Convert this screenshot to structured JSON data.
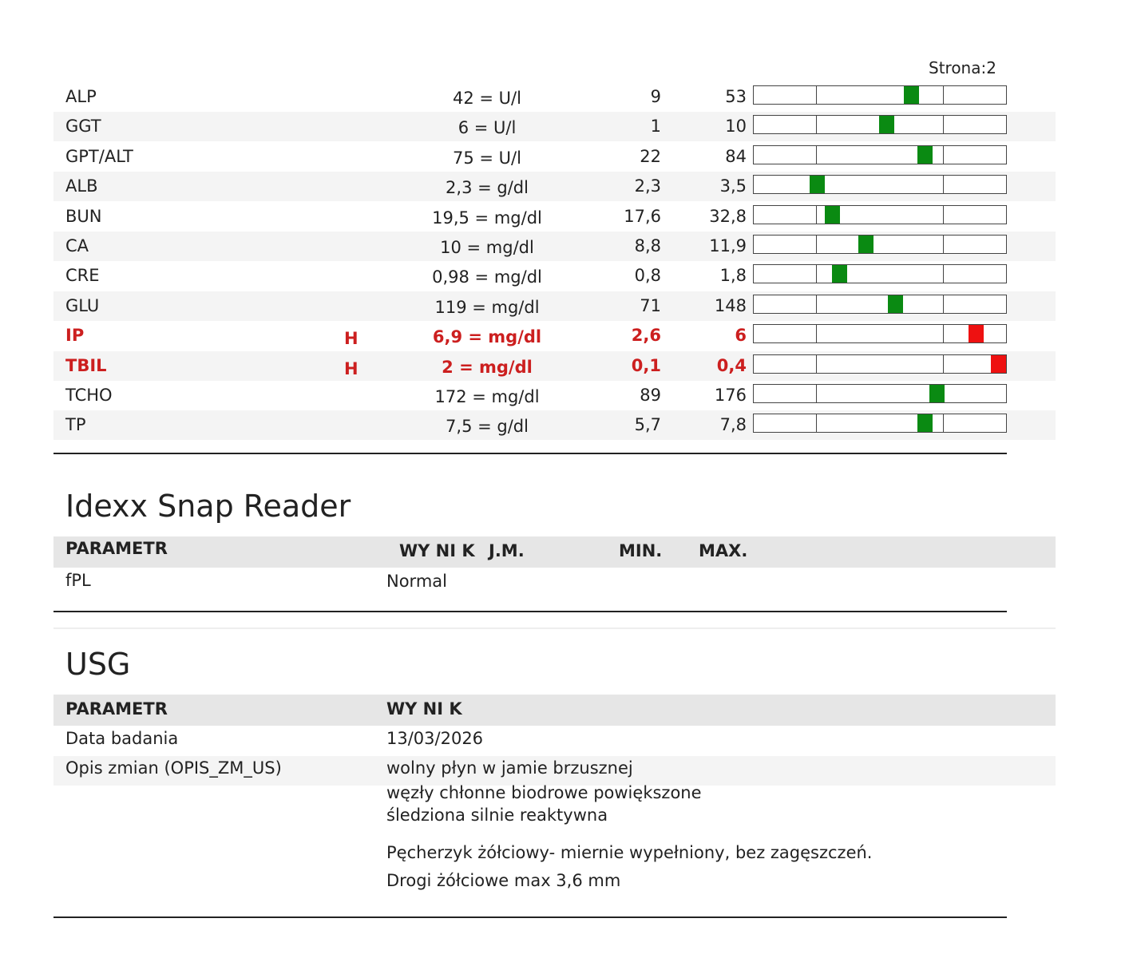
{
  "page_label": "Strona:2",
  "results": {
    "rows": [
      {
        "name": "ALP",
        "result": "42 = U/l",
        "min": "9",
        "max": "53"
      },
      {
        "name": "GGT",
        "result": "6 = U/l",
        "min": "1",
        "max": "10"
      },
      {
        "name": "GPT/ALT",
        "result": "75 = U/l",
        "min": "22",
        "max": "84"
      },
      {
        "name": "ALB",
        "result": "2,3 = g/dl",
        "min": "2,3",
        "max": "3,5"
      },
      {
        "name": "BUN",
        "result": "19,5 = mg/dl",
        "min": "17,6",
        "max": "32,8"
      },
      {
        "name": "CA",
        "result": "10 = mg/dl",
        "min": "8,8",
        "max": "11,9"
      },
      {
        "name": "CRE",
        "result": "0,98 = mg/dl",
        "min": "0,8",
        "max": "1,8"
      },
      {
        "name": "GLU",
        "result": "119 = mg/dl",
        "min": "71",
        "max": "148"
      },
      {
        "name": "IP",
        "flag": "H",
        "result": "6,9 = mg/dl",
        "min": "2,6",
        "max": "6"
      },
      {
        "name": "TBIL",
        "flag": "H",
        "result": "2 = mg/dl",
        "min": "0,1",
        "max": "0,4"
      },
      {
        "name": "TCHO",
        "result": "172 = mg/dl",
        "min": "89",
        "max": "176"
      },
      {
        "name": "TP",
        "result": "7,5 = g/dl",
        "min": "5,7",
        "max": "7,8"
      }
    ]
  },
  "snap": {
    "title": "Idexx Snap Reader",
    "headers": [
      "PARAMETR",
      "WY NI K",
      "J.M.",
      "MIN.",
      "MAX."
    ],
    "rows": [
      [
        "fPL",
        "Normal"
      ]
    ]
  },
  "usg": {
    "title": "USG",
    "headers": [
      "PARAMETR",
      "WY NI K"
    ],
    "rows": [
      {
        "param": "Data badania",
        "lines": [
          "13/03/2026"
        ]
      },
      {
        "param": "Opis zmian (OPIS_ZM_US)",
        "lines": [
          "wolny płyn w jamie brzusznej",
          "węzły chłonne biodrowe powiększone",
          "śledziona silnie reaktywna",
          "Pęcherzyk żółciowy- miernie wypełniony, bez zagęszczeń.",
          "Drogi żółciowe max 3,6 mm"
        ]
      }
    ]
  }
}
